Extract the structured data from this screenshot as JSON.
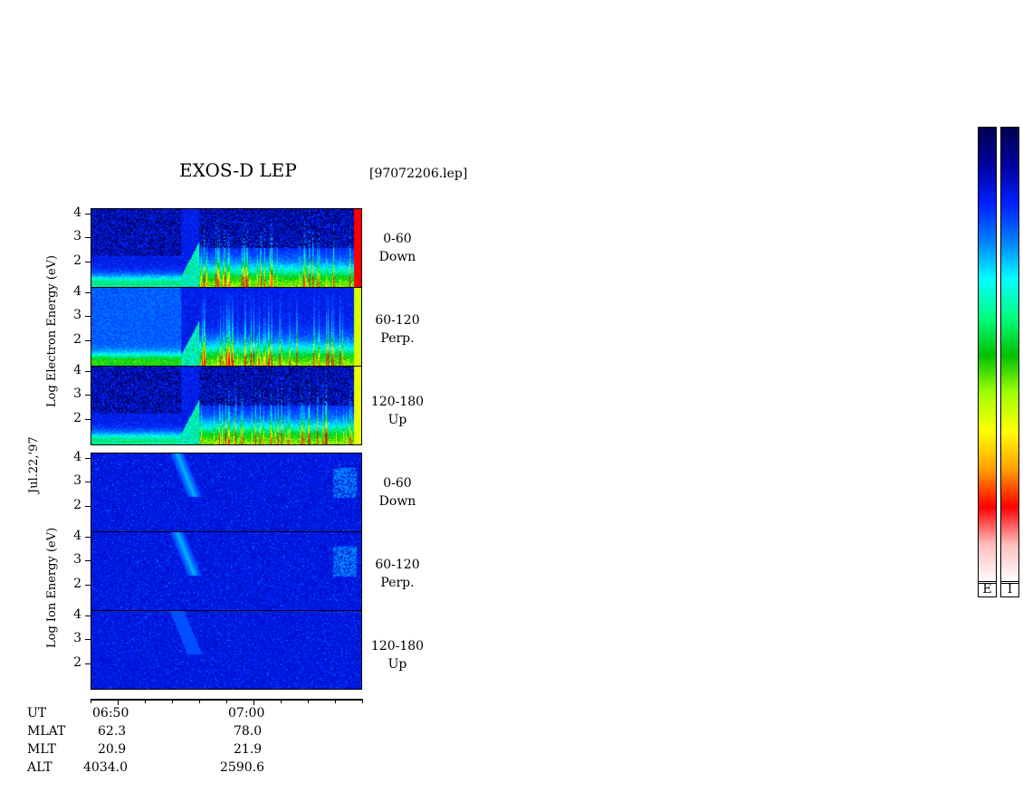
{
  "title": "EXOS-D LEP",
  "file": "[97072206.lep]",
  "date_label": "Jul.22,'97",
  "electron_ylabel": "Log  Electron  Energy (eV)",
  "ion_ylabel": "Log  Ion  Energy (eV)",
  "panels": [
    {
      "species": "electron",
      "angle": "0-60",
      "dir": "Down"
    },
    {
      "species": "electron",
      "angle": "60-120",
      "dir": "Perp."
    },
    {
      "species": "electron",
      "angle": "120-180",
      "dir": "Up"
    },
    {
      "species": "ion",
      "angle": "0-60",
      "dir": "Down"
    },
    {
      "species": "ion",
      "angle": "60-120",
      "dir": "Perp."
    },
    {
      "species": "ion",
      "angle": "120-180",
      "dir": "Up"
    }
  ],
  "yticks": [
    "4",
    "3",
    "2"
  ],
  "footer": {
    "rows": [
      {
        "label": "UT",
        "v1": "06:50",
        "v2": "07:00"
      },
      {
        "label": "MLAT",
        "v1": "62.3",
        "v2": "78.0"
      },
      {
        "label": "MLT",
        "v1": "20.9",
        "v2": "21.9"
      },
      {
        "label": "ALT",
        "v1": "4034.0",
        "v2": "2590.6"
      }
    ]
  },
  "colorbars": [
    {
      "label": "E"
    },
    {
      "label": "I"
    }
  ],
  "colors": {
    "scale": [
      "#000050",
      "#0000a0",
      "#0020ff",
      "#0080ff",
      "#00ffff",
      "#00ff80",
      "#00c000",
      "#a0ff00",
      "#ffff00",
      "#ffa000",
      "#ff0000",
      "#ffc0c0",
      "#ffffff"
    ]
  },
  "chart_data": {
    "type": "heatmap",
    "title": "EXOS-D LEP",
    "xlabel": "UT",
    "ylabel": "Log Energy (eV)",
    "x_ticks": [
      "06:50",
      "07:00"
    ],
    "ylim": [
      1,
      4
    ],
    "panels": [
      {
        "name": "Electron 0-60 Down"
      },
      {
        "name": "Electron 60-120 Perp."
      },
      {
        "name": "Electron 120-180 Up"
      },
      {
        "name": "Ion 0-60 Down"
      },
      {
        "name": "Ion 60-120 Perp."
      },
      {
        "name": "Ion 120-180 Up"
      }
    ]
  }
}
